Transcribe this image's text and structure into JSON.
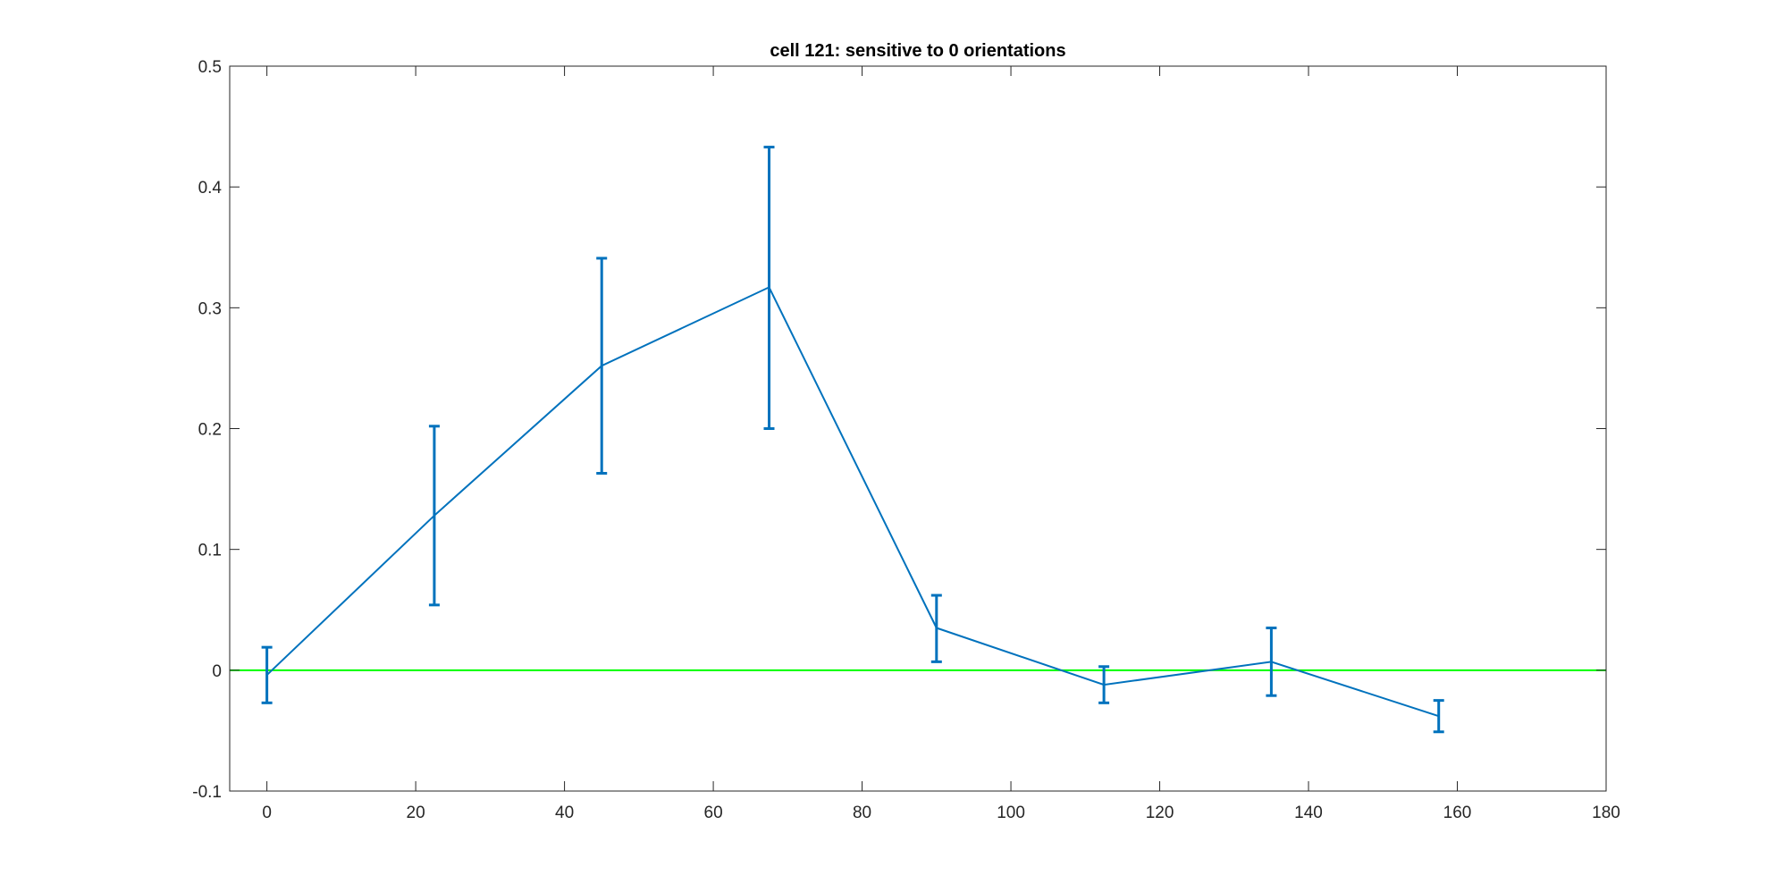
{
  "chart_data": {
    "type": "line",
    "title": "cell 121: sensitive to 0 orientations",
    "xlabel": "",
    "ylabel": "",
    "xlim": [
      -5,
      180
    ],
    "ylim": [
      -0.1,
      0.5
    ],
    "xticks": [
      0,
      20,
      40,
      60,
      80,
      100,
      120,
      140,
      160,
      180
    ],
    "yticks": [
      -0.1,
      0,
      0.1,
      0.2,
      0.3,
      0.4,
      0.5
    ],
    "xtick_labels": [
      "0",
      "20",
      "40",
      "60",
      "80",
      "100",
      "120",
      "140",
      "160",
      "180"
    ],
    "ytick_labels": [
      "-0.1",
      "0",
      "0.1",
      "0.2",
      "0.3",
      "0.4",
      "0.5"
    ],
    "grid": false,
    "legend": "none",
    "series": [
      {
        "x": [
          0,
          22.5,
          45,
          67.5,
          90,
          112.5,
          135,
          157.5
        ],
        "y": [
          -0.004,
          0.128,
          0.252,
          0.317,
          0.035,
          -0.012,
          0.007,
          -0.038
        ],
        "err_low": [
          -0.027,
          0.054,
          0.163,
          0.2,
          0.007,
          -0.027,
          -0.021,
          -0.051
        ],
        "err_high": [
          0.019,
          0.202,
          0.341,
          0.433,
          0.062,
          0.003,
          0.035,
          -0.025
        ],
        "color": "#0072bd"
      }
    ],
    "reference_lines": [
      {
        "y": 0,
        "color": "#00ff00"
      }
    ]
  }
}
